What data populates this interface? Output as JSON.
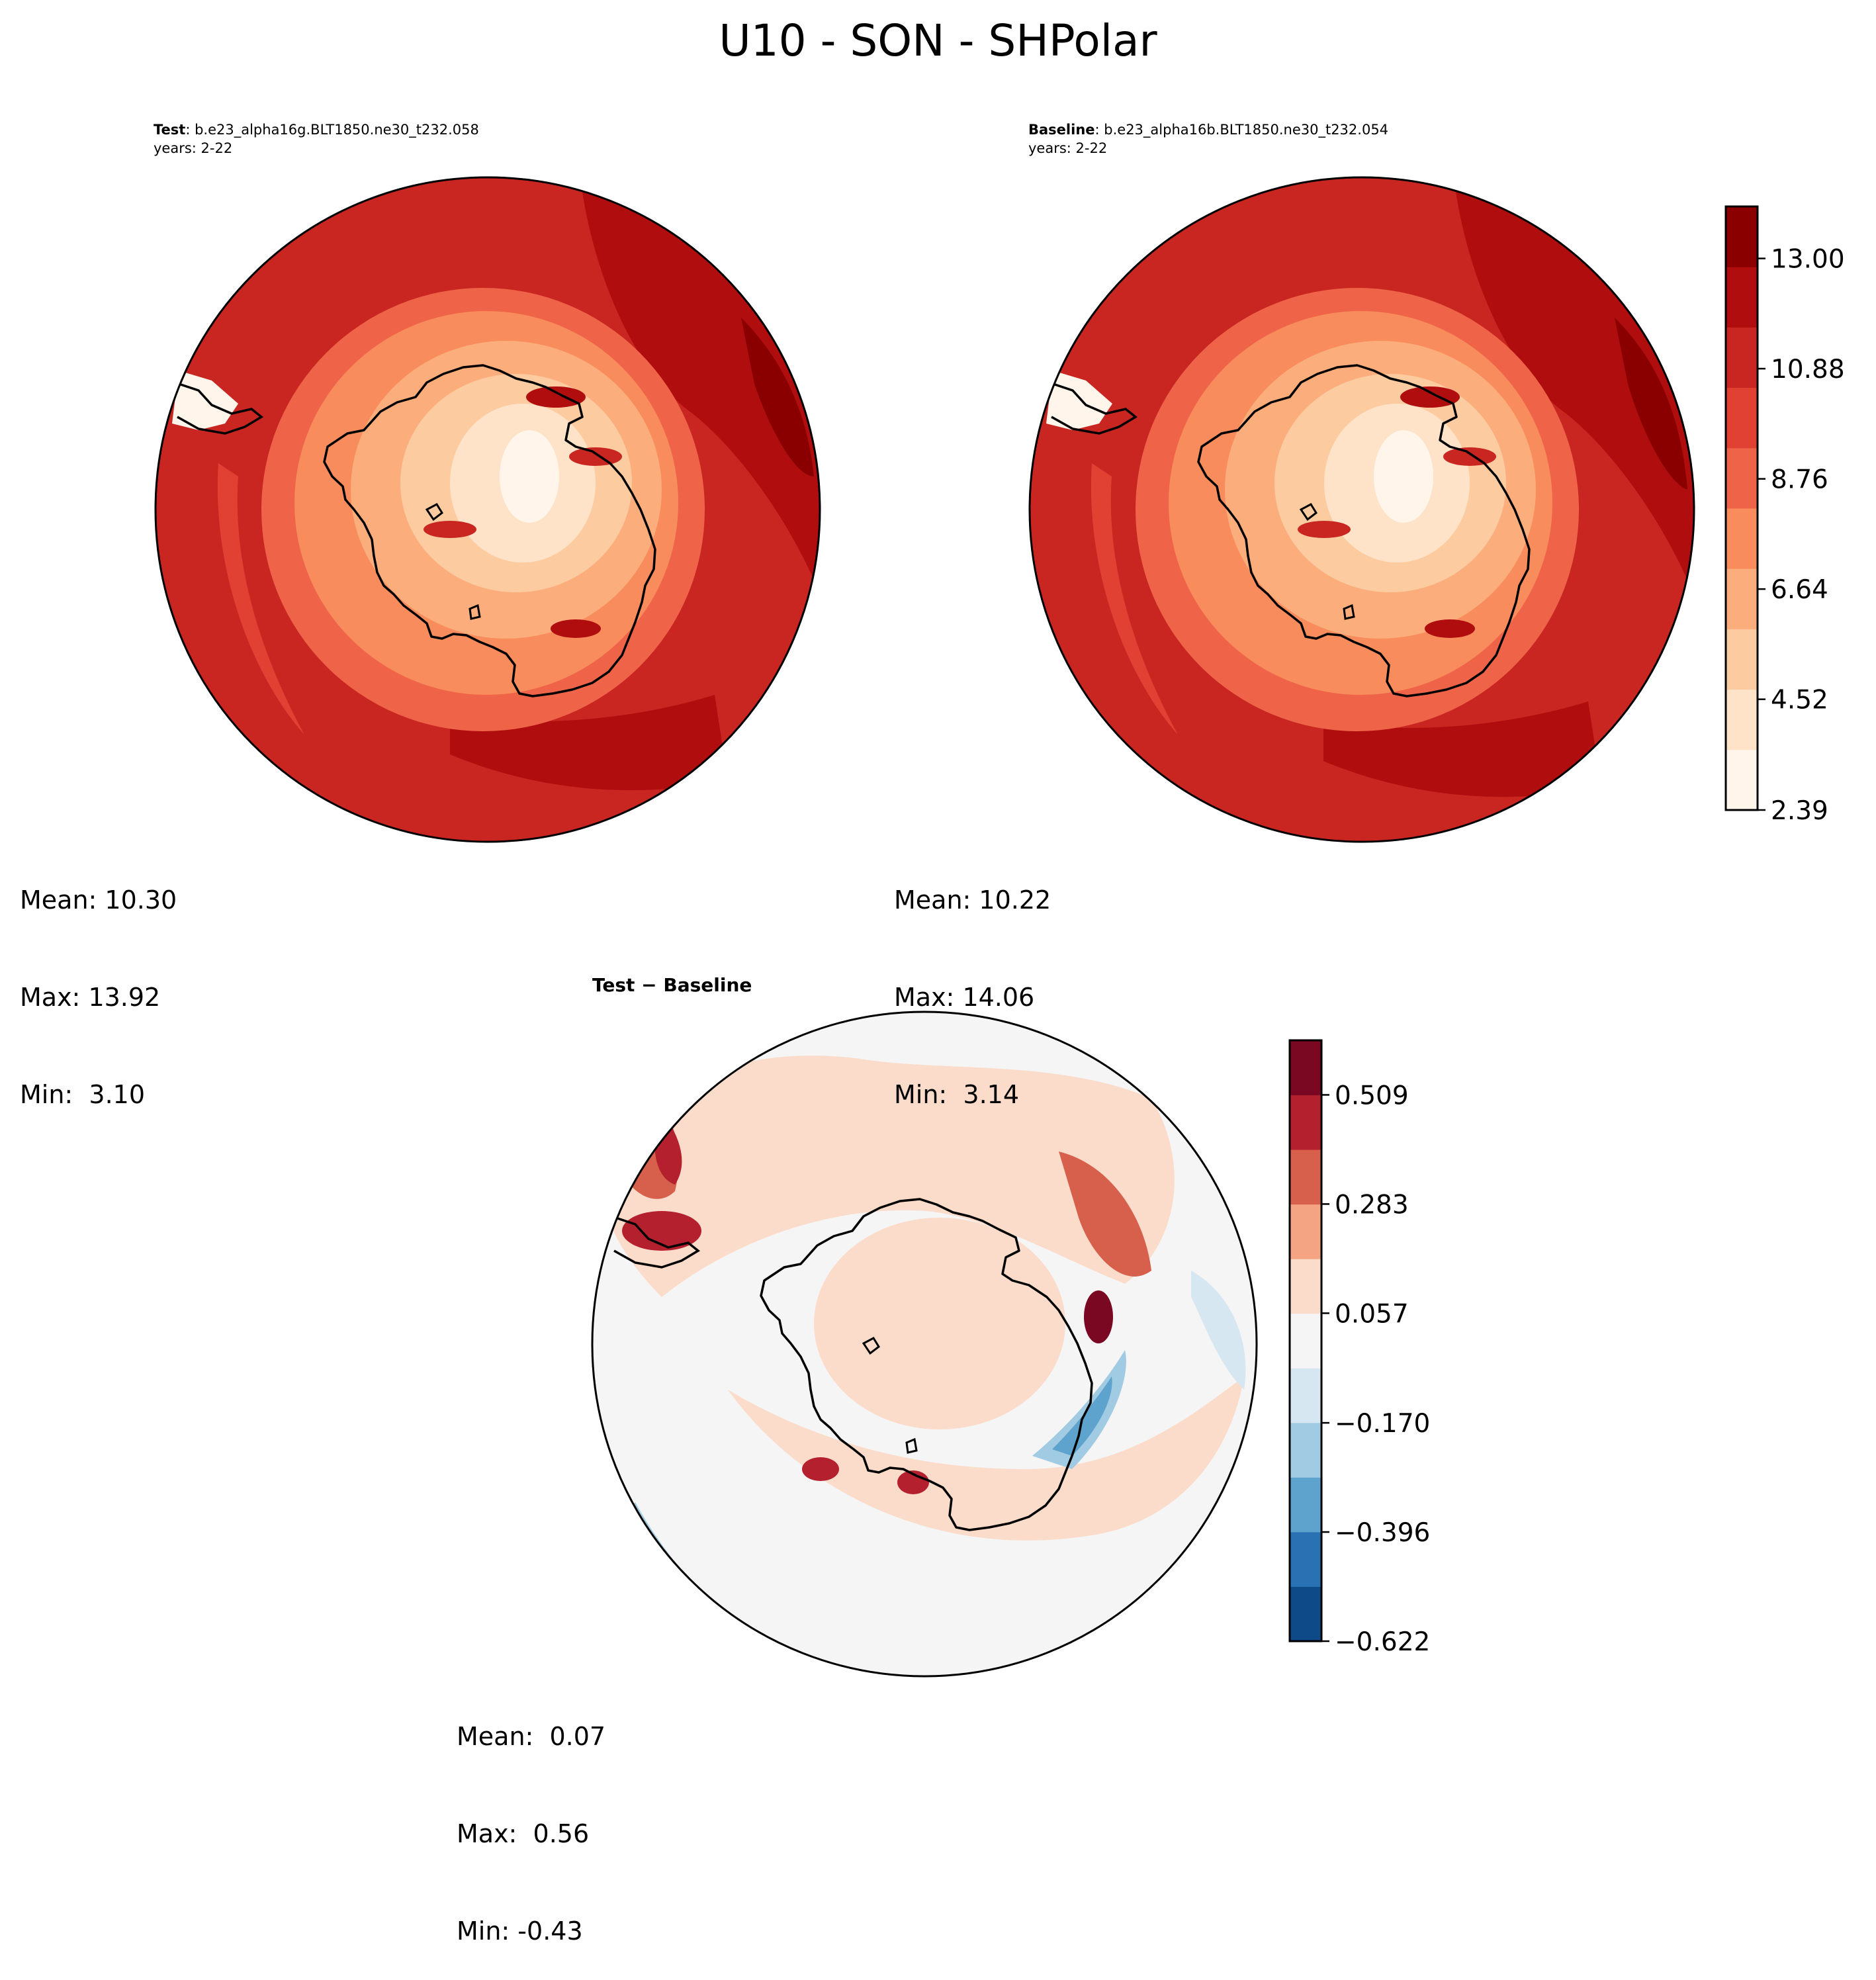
{
  "figure": {
    "title": "U10 - SON - SHPolar"
  },
  "panels": {
    "test": {
      "label": "Test",
      "case": ": b.e23_alpha16g.BLT1850.ne30_t232.058",
      "years": "years: 2-22",
      "stats": {
        "mean": "Mean: 10.30",
        "max": "Max: 13.92",
        "min": "Min:  3.10"
      }
    },
    "baseline": {
      "label": "Baseline",
      "case": ": b.e23_alpha16b.BLT1850.ne30_t232.054",
      "years": "years: 2-22",
      "stats": {
        "mean": "Mean: 10.22",
        "max": "Max: 14.06",
        "min": "Min:  3.14"
      }
    },
    "diff": {
      "label": "Test − Baseline",
      "stats": {
        "mean": "Mean:  0.07",
        "max": "Max:  0.56",
        "min": "Min: -0.43"
      }
    }
  },
  "colors": {
    "field_levels": [
      "#fff5eb",
      "#fee3c8",
      "#fdcba0",
      "#fcad7c",
      "#f88c5c",
      "#ef6448",
      "#e04133",
      "#c92622",
      "#b00d0f",
      "#8a0000"
    ],
    "diff_levels": [
      "#0d4a87",
      "#2971b2",
      "#5da3cd",
      "#a1cbe2",
      "#d6e7f1",
      "#f5f5f5",
      "#fbdcca",
      "#f4a482",
      "#d7604d",
      "#b4202e",
      "#7a0822"
    ],
    "coast": "#000000"
  },
  "chart_data": [
    {
      "type": "heatmap",
      "name_ref": "test",
      "projection": "south-polar-stereographic",
      "units_note": "",
      "stats": {
        "mean": 10.3,
        "max": 13.92,
        "min": 3.1
      }
    },
    {
      "type": "heatmap",
      "name_ref": "baseline",
      "projection": "south-polar-stereographic",
      "stats": {
        "mean": 10.22,
        "max": 14.06,
        "min": 3.14
      },
      "colorbar": {
        "range": [
          2.39,
          14.0
        ],
        "ticks": [
          "13.00",
          "10.88",
          "8.76",
          "6.64",
          "4.52",
          "2.39"
        ],
        "tick_values": [
          13.0,
          10.88,
          8.76,
          6.64,
          4.52,
          2.39
        ],
        "levels": 11
      }
    },
    {
      "type": "heatmap",
      "name_ref": "diff",
      "projection": "south-polar-stereographic",
      "stats": {
        "mean": 0.07,
        "max": 0.56,
        "min": -0.43
      },
      "colorbar": {
        "range": [
          -0.622,
          0.622
        ],
        "ticks": [
          "0.509",
          "0.283",
          "0.057",
          "−0.170",
          "−0.396",
          "−0.622"
        ],
        "tick_values": [
          0.509,
          0.283,
          0.057,
          -0.17,
          -0.396,
          -0.622
        ],
        "levels": 11
      }
    }
  ]
}
